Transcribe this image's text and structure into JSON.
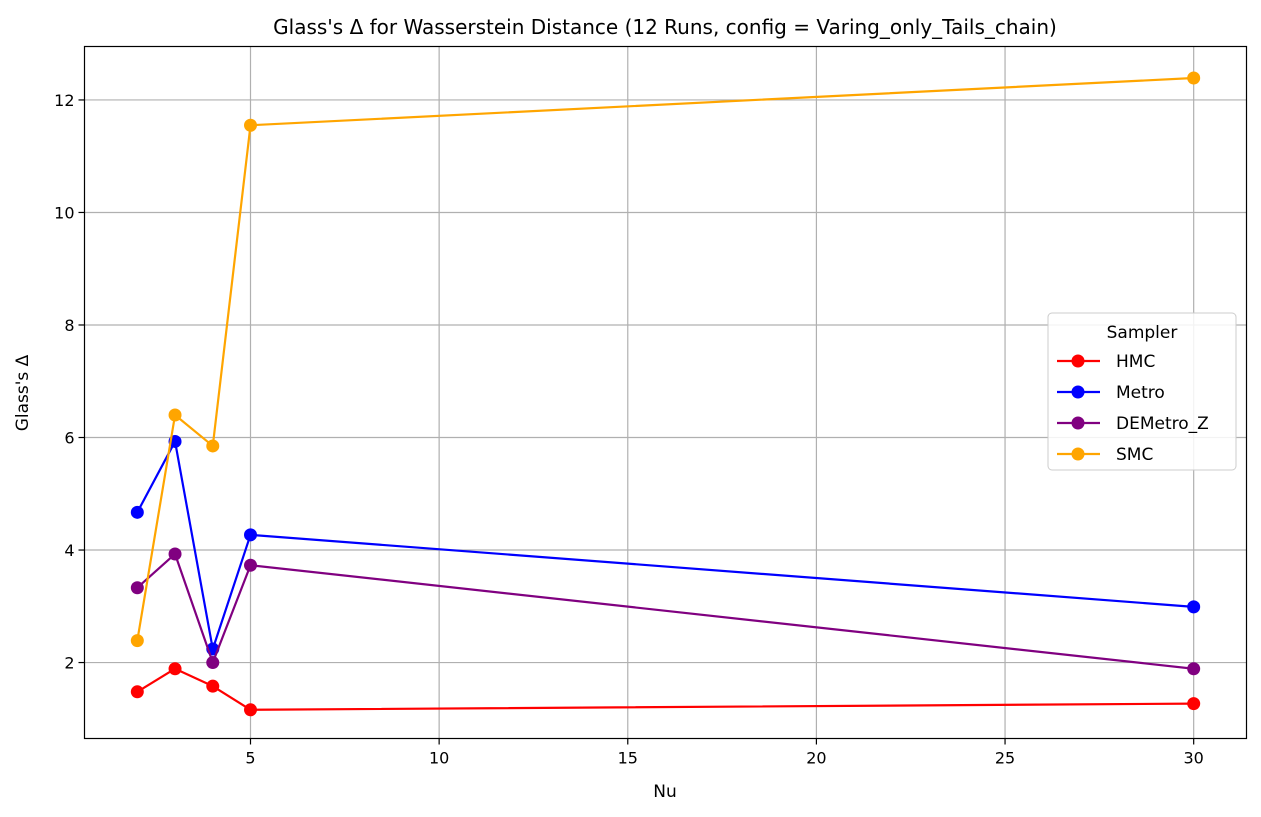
{
  "chart_data": {
    "type": "line",
    "title": "Glass's Δ for Wasserstein Distance (12 Runs, config = Varing_only_Tails_chain)",
    "xlabel": "Nu",
    "ylabel": "Glass's Δ",
    "xlim": [
      0.6,
      31.4
    ],
    "ylim": [
      0.65,
      12.95
    ],
    "xticks": [
      5,
      10,
      15,
      20,
      25,
      30
    ],
    "yticks": [
      2,
      4,
      6,
      8,
      10,
      12
    ],
    "grid": true,
    "legend": {
      "title": "Sampler",
      "placement": "center-right"
    },
    "x": [
      2,
      3,
      4,
      5,
      30
    ],
    "series": [
      {
        "name": "HMC",
        "color": "#ff0000",
        "values": [
          1.48,
          1.89,
          1.58,
          1.16,
          1.27
        ]
      },
      {
        "name": "Metro",
        "color": "#0000ff",
        "values": [
          4.67,
          5.93,
          2.24,
          4.27,
          2.99
        ]
      },
      {
        "name": "DEMetro_Z",
        "color": "#800080",
        "values": [
          3.33,
          3.93,
          2.0,
          3.73,
          1.89
        ]
      },
      {
        "name": "SMC",
        "color": "#ffa500",
        "values": [
          2.39,
          6.4,
          5.85,
          11.55,
          12.39
        ]
      }
    ]
  }
}
